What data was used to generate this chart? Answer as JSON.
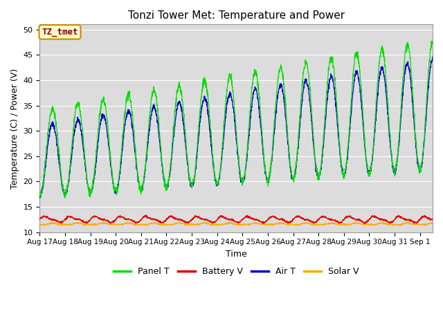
{
  "title": "Tonzi Tower Met: Temperature and Power",
  "ylabel": "Temperature (C) / Power (V)",
  "xlabel": "Time",
  "ylim": [
    10,
    51
  ],
  "annotation": "TZ_tmet",
  "colors": {
    "panel_t": "#00dd00",
    "battery_v": "#dd0000",
    "air_t": "#0000cc",
    "solar_v": "#ffaa00"
  },
  "legend_labels": [
    "Panel T",
    "Battery V",
    "Air T",
    "Solar V"
  ],
  "bg_color": "#dcdcdc",
  "xtick_labels": [
    "Aug 17",
    "Aug 18",
    "Aug 19",
    "Aug 20",
    "Aug 21",
    "Aug 22",
    "Aug 23",
    "Aug 24",
    "Aug 25",
    "Aug 26",
    "Aug 27",
    "Aug 28",
    "Aug 29",
    "Aug 30",
    "Aug 31",
    "Sep 1"
  ],
  "grid_color": "#ffffff",
  "yticks": [
    10,
    15,
    20,
    25,
    30,
    35,
    40,
    45,
    50
  ]
}
